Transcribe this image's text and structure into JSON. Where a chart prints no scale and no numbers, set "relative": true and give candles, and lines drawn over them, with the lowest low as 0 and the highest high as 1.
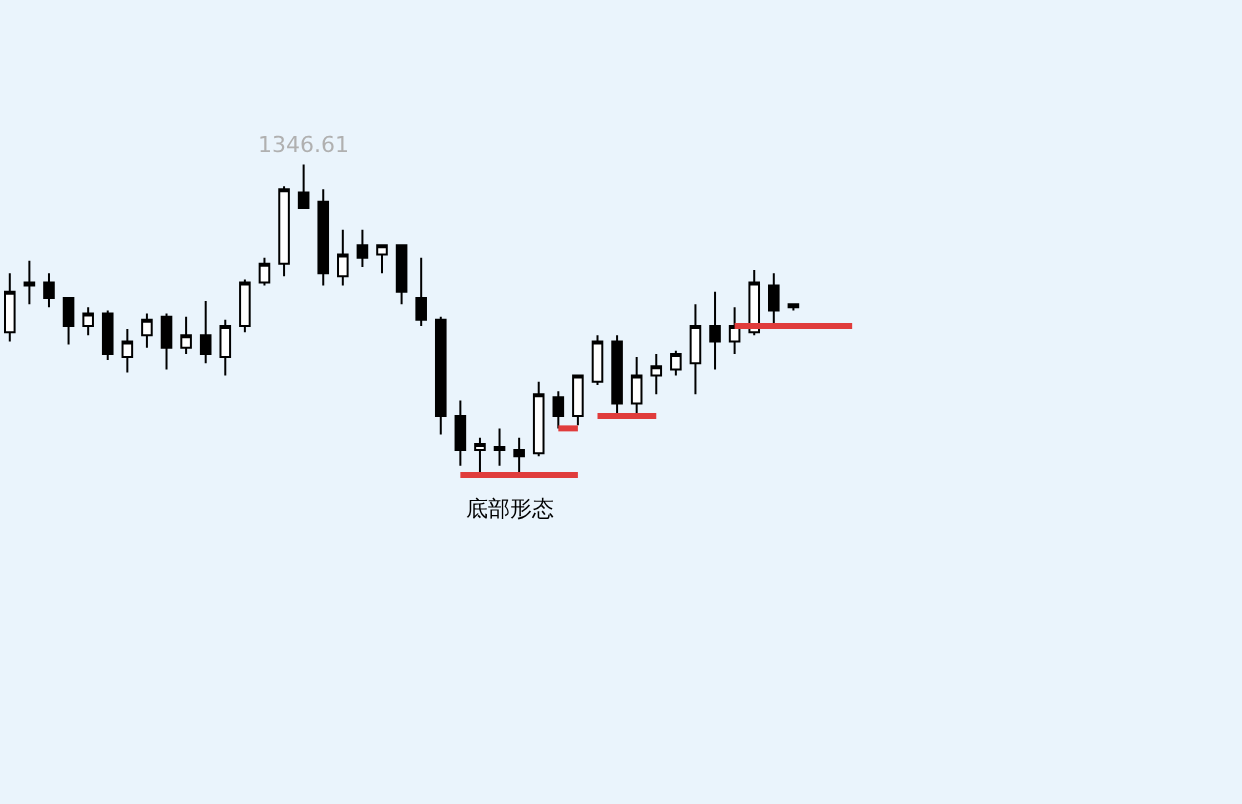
{
  "chart_data": {
    "type": "candlestick",
    "relative": true,
    "categories": [
      null,
      null,
      null,
      null,
      null,
      null,
      null,
      null,
      null,
      null,
      null,
      null,
      null,
      null,
      null,
      null,
      null,
      null,
      null,
      null,
      null,
      null,
      null,
      null,
      null,
      null,
      null,
      null,
      null,
      null,
      null,
      null,
      null,
      null,
      null,
      null,
      null,
      null,
      null,
      null,
      null,
      null,
      null,
      null
    ],
    "ohlc": [
      [
        0.46,
        0.65,
        0.43,
        0.59
      ],
      [
        0.61,
        0.69,
        0.55,
        0.62
      ],
      [
        0.62,
        0.65,
        0.54,
        0.57
      ],
      [
        0.57,
        0.57,
        0.42,
        0.48
      ],
      [
        0.48,
        0.54,
        0.45,
        0.52
      ],
      [
        0.52,
        0.53,
        0.37,
        0.39
      ],
      [
        0.38,
        0.47,
        0.33,
        0.43
      ],
      [
        0.45,
        0.52,
        0.41,
        0.5
      ],
      [
        0.51,
        0.52,
        0.34,
        0.41
      ],
      [
        0.41,
        0.51,
        0.39,
        0.45
      ],
      [
        0.45,
        0.56,
        0.36,
        0.39
      ],
      [
        0.38,
        0.5,
        0.32,
        0.48
      ],
      [
        0.48,
        0.63,
        0.46,
        0.62
      ],
      [
        0.62,
        0.7,
        0.61,
        0.68
      ],
      [
        0.68,
        0.93,
        0.64,
        0.92
      ],
      [
        0.91,
        1,
        0.86,
        0.86
      ],
      [
        0.88,
        0.92,
        0.61,
        0.65
      ],
      [
        0.64,
        0.79,
        0.61,
        0.71
      ],
      [
        0.74,
        0.79,
        0.67,
        0.7
      ],
      [
        0.71,
        0.74,
        0.65,
        0.74
      ],
      [
        0.74,
        0.74,
        0.55,
        0.59
      ],
      [
        0.57,
        0.7,
        0.48,
        0.5
      ],
      [
        0.5,
        0.51,
        0.13,
        0.19
      ],
      [
        0.19,
        0.24,
        0.03,
        0.08
      ],
      [
        0.08,
        0.12,
        0,
        0.1
      ],
      [
        0.08,
        0.15,
        0.03,
        0.09
      ],
      [
        0.08,
        0.12,
        0,
        0.06
      ],
      [
        0.07,
        0.3,
        0.06,
        0.26
      ],
      [
        0.25,
        0.27,
        0.15,
        0.19
      ],
      [
        0.19,
        0.32,
        0.16,
        0.32
      ],
      [
        0.3,
        0.45,
        0.29,
        0.43
      ],
      [
        0.43,
        0.45,
        0.18,
        0.23
      ],
      [
        0.23,
        0.38,
        0.19,
        0.32
      ],
      [
        0.32,
        0.39,
        0.26,
        0.35
      ],
      [
        0.34,
        0.4,
        0.32,
        0.39
      ],
      [
        0.36,
        0.55,
        0.26,
        0.48
      ],
      [
        0.48,
        0.59,
        0.34,
        0.43
      ],
      [
        0.43,
        0.54,
        0.39,
        0.48
      ],
      [
        0.46,
        0.66,
        0.45,
        0.62
      ],
      [
        0.61,
        0.65,
        0.48,
        0.53
      ],
      [
        0.54,
        0.55,
        0.53,
        0.55
      ],
      null,
      null,
      null
    ],
    "series": [
      {
        "type": "line",
        "color": "#e03c3c",
        "values": [
          null,
          null,
          null,
          null,
          null,
          null,
          null,
          null,
          null,
          null,
          null,
          null,
          null,
          null,
          null,
          null,
          null,
          null,
          null,
          null,
          null,
          null,
          null,
          0,
          0,
          0,
          0,
          0,
          0,
          0,
          null,
          null,
          null,
          null,
          null,
          null,
          null,
          0.48,
          0.48,
          0.48,
          0.48,
          0.48,
          0.48,
          0.48
        ]
      },
      {
        "type": "line",
        "color": "#e03c3c",
        "values": [
          null,
          null,
          null,
          null,
          null,
          null,
          null,
          null,
          null,
          null,
          null,
          null,
          null,
          null,
          null,
          null,
          null,
          null,
          null,
          null,
          null,
          null,
          null,
          null,
          null,
          null,
          null,
          null,
          0.15,
          0.15,
          null,
          null,
          null,
          null,
          null,
          null,
          null,
          null,
          null,
          null,
          null,
          null,
          null,
          null
        ]
      },
      {
        "type": "line",
        "color": "#e03c3c",
        "values": [
          null,
          null,
          null,
          null,
          null,
          null,
          null,
          null,
          null,
          null,
          null,
          null,
          null,
          null,
          null,
          null,
          null,
          null,
          null,
          null,
          null,
          null,
          null,
          null,
          null,
          null,
          null,
          null,
          null,
          null,
          0.19,
          0.19,
          0.19,
          0.19,
          null,
          null,
          null,
          null,
          null,
          null,
          null,
          null,
          null,
          null
        ]
      }
    ],
    "annotations": [
      {
        "text": "1346.61",
        "y": 1
      },
      {
        "text": "底部形态",
        "y": 0
      }
    ]
  }
}
